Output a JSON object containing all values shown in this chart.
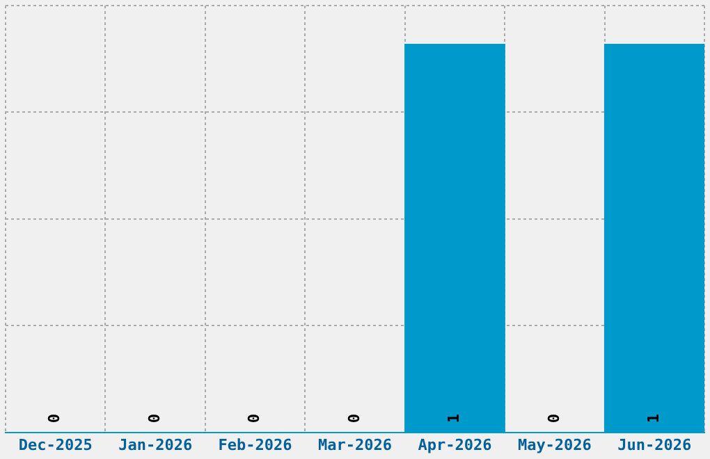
{
  "chart_data": {
    "type": "bar",
    "categories": [
      "Dec-2025",
      "Jan-2026",
      "Feb-2026",
      "Mar-2026",
      "Apr-2026",
      "May-2026",
      "Jun-2026"
    ],
    "values": [
      0,
      0,
      0,
      0,
      1,
      0,
      1
    ],
    "color": "#0099cc",
    "ylim": [
      0,
      1.1
    ],
    "yticks": [
      {
        "value": 0.275,
        "label": null
      },
      {
        "value": 0.55,
        "label": null
      },
      {
        "value": 0.825,
        "label": null
      },
      {
        "value": 1.1,
        "label": null
      }
    ],
    "tick_labels": "x",
    "grid": true,
    "data_labels": true
  }
}
